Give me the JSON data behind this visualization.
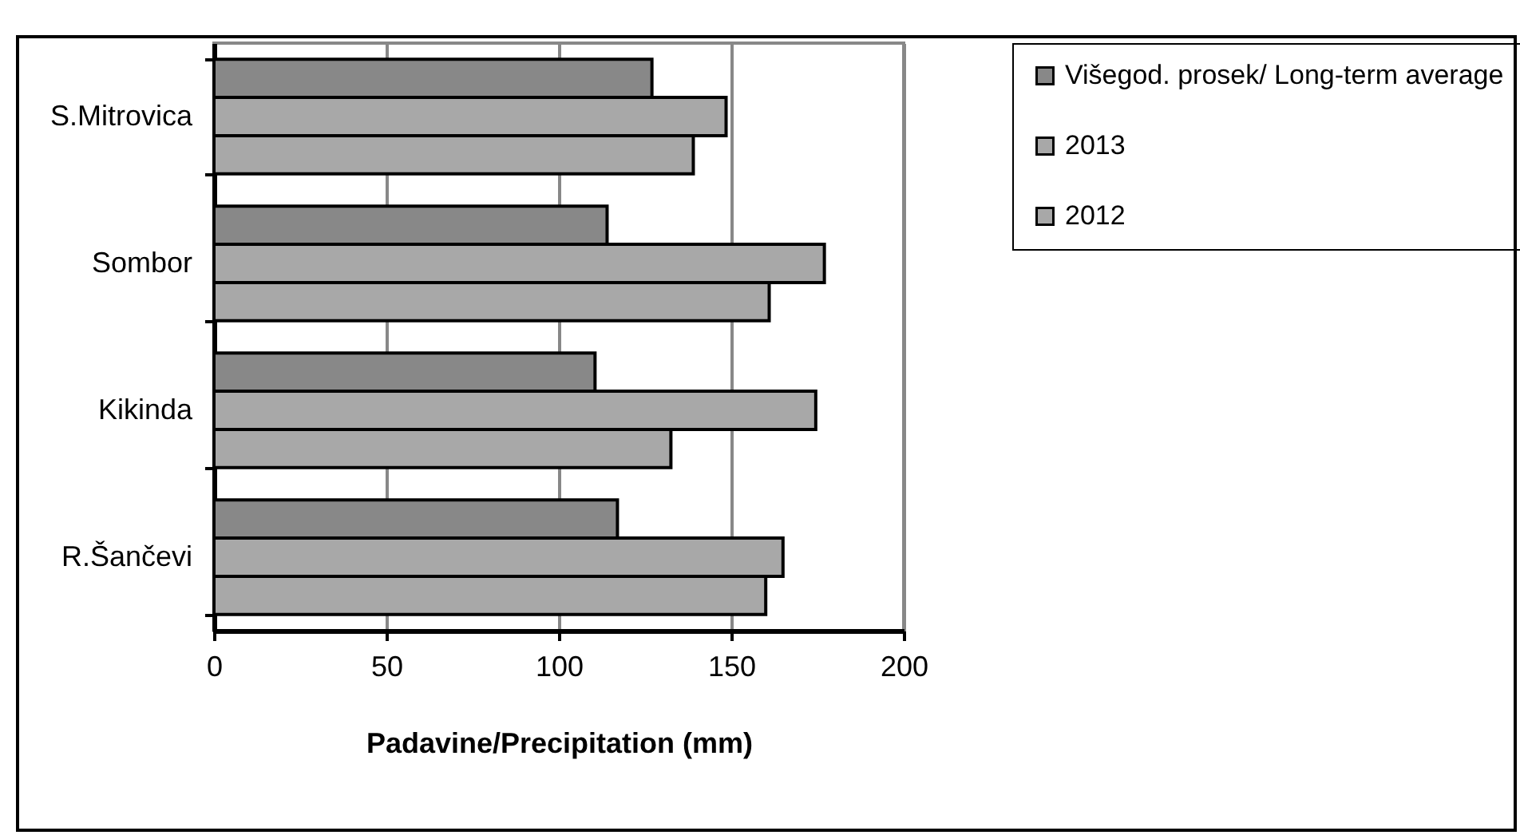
{
  "chart_data": {
    "type": "bar",
    "orientation": "horizontal",
    "xlabel": "Padavine/Precipitation (mm)",
    "categories": [
      "S.Mitrovica",
      "Sombor",
      "Kikinda",
      "R.Šančevi"
    ],
    "series": [
      {
        "name": "Višegod. prosek/ Long-term average",
        "color": "#888888",
        "values": [
          127,
          114,
          110.5,
          117
        ]
      },
      {
        "name": "2013",
        "color": "#a8a8a8",
        "values": [
          148.5,
          177,
          174.5,
          165
        ]
      },
      {
        "name": "2012",
        "color": "#a8a8a8",
        "values": [
          139,
          161,
          132.5,
          160
        ]
      }
    ],
    "xlim": [
      0,
      200
    ],
    "xticks": [
      0,
      50,
      100,
      150,
      200
    ],
    "grid": "x",
    "legend": "right"
  }
}
